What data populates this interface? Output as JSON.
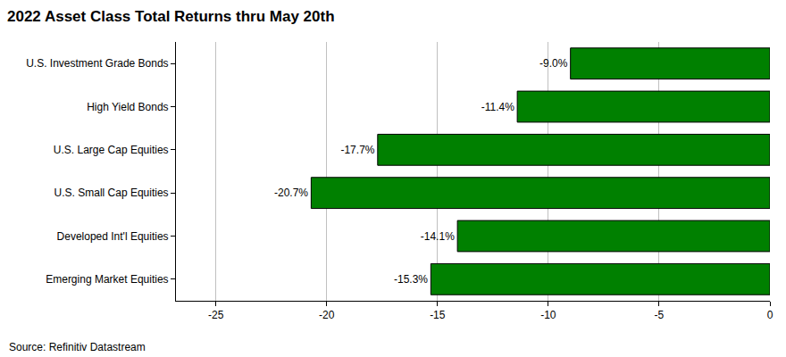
{
  "chart_data": {
    "type": "bar",
    "orientation": "horizontal",
    "title": "2022 Asset Class Total Returns thru May 20th",
    "categories": [
      "U.S. Investment Grade Bonds",
      "High Yield Bonds",
      "U.S. Large Cap Equities",
      "U.S. Small Cap Equities",
      "Developed Int'l Equities",
      "Emerging Market Equities"
    ],
    "values": [
      -9.0,
      -11.4,
      -17.7,
      -20.7,
      -14.1,
      -15.3
    ],
    "value_labels": [
      "-9.0%",
      "-11.4%",
      "-17.7%",
      "-20.7%",
      "-14.1%",
      "-15.3%"
    ],
    "data_labels": true,
    "color": "#008000",
    "xlim": [
      -26.8,
      0
    ],
    "xticks": [
      -25,
      -20,
      -15,
      -10,
      -5,
      0
    ],
    "grid": true,
    "annotations": [
      "Source: Refinitiv Datastream"
    ]
  }
}
